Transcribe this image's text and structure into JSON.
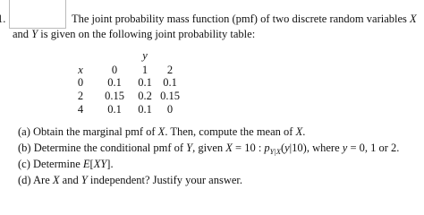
{
  "problem": {
    "number": "1.",
    "intro": [
      [
        "The joint probability mass function (pmf) of two discrete random variables ",
        "X"
      ],
      [
        "and ",
        "Y",
        " is given on the following joint probability table:"
      ]
    ],
    "table": {
      "col_var": "y",
      "row_var": "x",
      "columns": [
        0,
        1,
        2
      ],
      "rows": [
        {
          "x": 0,
          "values": [
            0.1,
            0.1,
            0.1
          ]
        },
        {
          "x": 2,
          "values": [
            0.15,
            0.2,
            0.15
          ]
        },
        {
          "x": 4,
          "values": [
            0.1,
            0.1,
            0
          ]
        }
      ]
    },
    "parts": [
      {
        "label": "(a)",
        "segments": [
          "Obtain the marginal pmf of ",
          "X",
          ". Then, compute the mean of ",
          "X",
          "."
        ]
      },
      {
        "label": "(b)",
        "segments": [
          "Determine the conditional pmf of ",
          "Y",
          ", given ",
          "X",
          " = 10 : ",
          "p",
          "Y|X",
          "(",
          "y",
          "|10), where ",
          "y",
          " = 0, 1 or 2."
        ]
      },
      {
        "label": "(c)",
        "segments": [
          "Determine ",
          "E",
          "[",
          "XY",
          "]."
        ]
      },
      {
        "label": "(d)",
        "segments": [
          "Are ",
          "X",
          " and ",
          "Y",
          " independent? Justify your answer."
        ]
      }
    ]
  }
}
